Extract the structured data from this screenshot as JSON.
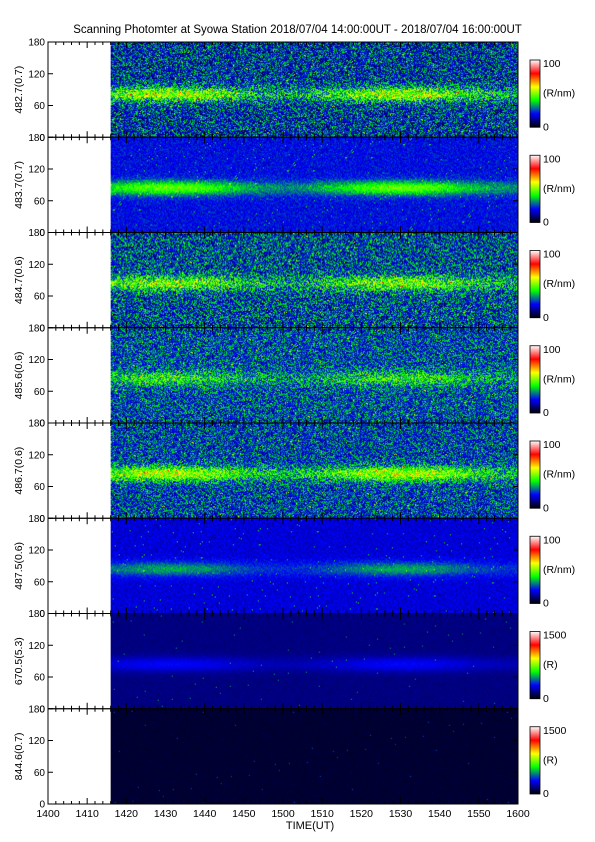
{
  "chart_data": {
    "type": "heatmap",
    "title": "Scanning Photomter at Syowa Station 2018/07/04 14:00:00UT - 2018/07/04 16:00:00UT",
    "xlabel": "TIME(UT)",
    "x_ticks": [
      "1400",
      "1410",
      "1420",
      "1430",
      "1440",
      "1450",
      "1500",
      "1510",
      "1520",
      "1530",
      "1540",
      "1550",
      "1600"
    ],
    "x_range": [
      "14:00",
      "16:00"
    ],
    "data_start": "14:16",
    "y_ticks": [
      "0",
      "60",
      "120",
      "180"
    ],
    "ylim": [
      0,
      180
    ],
    "colorscale": [
      "#000000",
      "#0000ff",
      "#00ff00",
      "#ffff00",
      "#ff0000",
      "#ffffff"
    ],
    "panels": [
      {
        "ylabel": "482.7(0.7)",
        "cbar_max": "100",
        "cbar_min": "0",
        "cbar_unit": "(R/nm)",
        "band_center": 82,
        "band_intensity": 0.55,
        "background": 0.22,
        "noise": 0.35
      },
      {
        "ylabel": "483.7(0.7)",
        "cbar_max": "100",
        "cbar_min": "0",
        "cbar_unit": "(R/nm)",
        "band_center": 85,
        "band_intensity": 0.5,
        "background": 0.2,
        "noise": 0.12
      },
      {
        "ylabel": "484.7(0.6)",
        "cbar_max": "100",
        "cbar_min": "0",
        "cbar_unit": "(R/nm)",
        "band_center": 85,
        "band_intensity": 0.45,
        "background": 0.24,
        "noise": 0.35
      },
      {
        "ylabel": "485.6(0.6)",
        "cbar_max": "100",
        "cbar_min": "0",
        "cbar_unit": "(R/nm)",
        "band_center": 85,
        "band_intensity": 0.3,
        "background": 0.25,
        "noise": 0.3
      },
      {
        "ylabel": "486.7(0.6)",
        "cbar_max": "100",
        "cbar_min": "0",
        "cbar_unit": "(R/nm)",
        "band_center": 85,
        "band_intensity": 0.55,
        "background": 0.24,
        "noise": 0.3
      },
      {
        "ylabel": "487.5(0.6)",
        "cbar_max": "100",
        "cbar_min": "0",
        "cbar_unit": "(R/nm)",
        "band_center": 85,
        "band_intensity": 0.3,
        "background": 0.17,
        "noise": 0.08
      },
      {
        "ylabel": "670.5(5.3)",
        "cbar_max": "1500",
        "cbar_min": "0",
        "cbar_unit": "(R)",
        "band_center": 85,
        "band_intensity": 0.18,
        "background": 0.1,
        "noise": 0.03
      },
      {
        "ylabel": "844.6(0.7)",
        "cbar_max": "1500",
        "cbar_min": "0",
        "cbar_unit": "(R)",
        "band_center": 85,
        "band_intensity": 0.0,
        "background": 0.04,
        "noise": 0.02
      }
    ]
  }
}
